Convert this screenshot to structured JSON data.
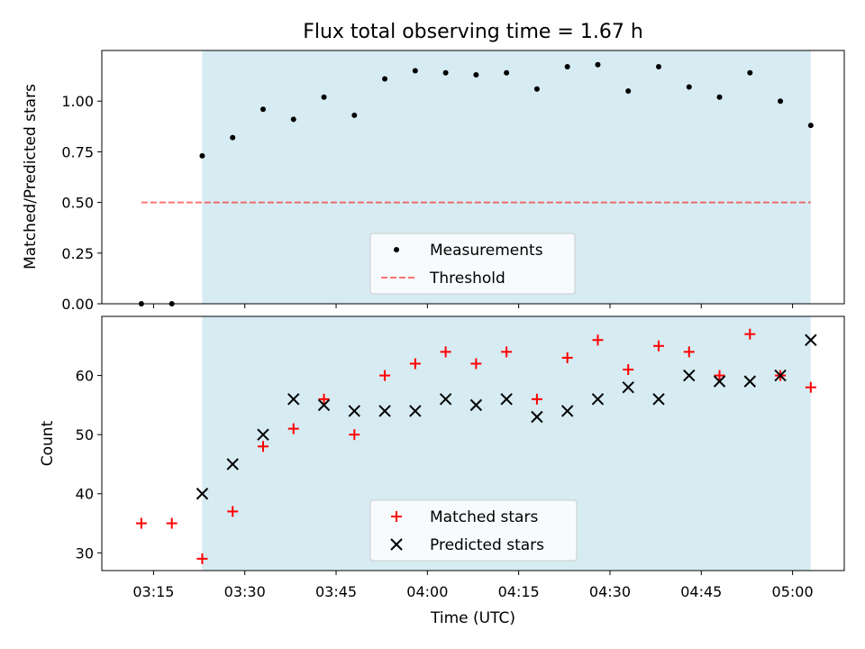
{
  "title": "Flux total observing time = 1.67 h",
  "colors": {
    "shade": "#add8e6",
    "measurement": "#000000",
    "threshold": "#ff0000",
    "matched": "#ff0000",
    "predicted": "#000000"
  },
  "chart_data": [
    {
      "type": "scatter",
      "panel": "top",
      "ylabel": "Matched/Predicted stars",
      "xlabel": "",
      "xlim_minutes": [
        186.5,
        308.5
      ],
      "ylim": [
        0,
        1.25
      ],
      "yticks": [
        0.0,
        0.25,
        0.5,
        0.75,
        1.0
      ],
      "ytick_labels": [
        "0.00",
        "0.25",
        "0.50",
        "0.75",
        "1.00"
      ],
      "xticks": [
        "03:15",
        "03:30",
        "03:45",
        "04:00",
        "04:15",
        "04:30",
        "04:45",
        "05:00"
      ],
      "shaded_region": [
        "03:23",
        "05:03"
      ],
      "legend": {
        "placement": "lower-center",
        "entries": [
          "Measurements",
          "Threshold"
        ]
      },
      "series": [
        {
          "name": "Measurements",
          "marker": "dot",
          "x": [
            "03:13",
            "03:18",
            "03:23",
            "03:28",
            "03:33",
            "03:38",
            "03:43",
            "03:48",
            "03:53",
            "03:58",
            "04:03",
            "04:08",
            "04:13",
            "04:18",
            "04:23",
            "04:28",
            "04:33",
            "04:38",
            "04:43",
            "04:48",
            "04:53",
            "04:58",
            "05:03"
          ],
          "y": [
            0.0,
            0.0,
            0.73,
            0.82,
            0.96,
            0.91,
            1.02,
            0.93,
            1.11,
            1.15,
            1.14,
            1.13,
            1.14,
            1.06,
            1.17,
            1.18,
            1.05,
            1.17,
            1.07,
            1.02,
            1.14,
            1.0,
            0.88
          ]
        },
        {
          "name": "Threshold",
          "style": "dashed",
          "x": [
            "03:13",
            "05:03"
          ],
          "y": [
            0.5,
            0.5
          ]
        }
      ]
    },
    {
      "type": "scatter",
      "panel": "bottom",
      "ylabel": "Count",
      "xlabel": "Time (UTC)",
      "xlim_minutes": [
        186.5,
        308.5
      ],
      "ylim": [
        27,
        70
      ],
      "yticks": [
        30,
        40,
        50,
        60
      ],
      "xticks": [
        "03:15",
        "03:30",
        "03:45",
        "04:00",
        "04:15",
        "04:30",
        "04:45",
        "05:00"
      ],
      "shaded_region": [
        "03:23",
        "05:03"
      ],
      "legend": {
        "placement": "lower-center",
        "entries": [
          "Matched stars",
          "Predicted stars"
        ]
      },
      "series": [
        {
          "name": "Matched stars",
          "marker": "plus",
          "x": [
            "03:13",
            "03:18",
            "03:23",
            "03:28",
            "03:33",
            "03:38",
            "03:43",
            "03:48",
            "03:53",
            "03:58",
            "04:03",
            "04:08",
            "04:13",
            "04:18",
            "04:23",
            "04:28",
            "04:33",
            "04:38",
            "04:43",
            "04:48",
            "04:53",
            "04:58",
            "05:03"
          ],
          "y": [
            35,
            35,
            29,
            37,
            48,
            51,
            56,
            50,
            60,
            62,
            64,
            62,
            64,
            56,
            63,
            66,
            61,
            65,
            64,
            60,
            67,
            60,
            58
          ]
        },
        {
          "name": "Predicted stars",
          "marker": "x",
          "x": [
            "03:23",
            "03:28",
            "03:33",
            "03:38",
            "03:43",
            "03:48",
            "03:53",
            "03:58",
            "04:03",
            "04:08",
            "04:13",
            "04:18",
            "04:23",
            "04:28",
            "04:33",
            "04:38",
            "04:43",
            "04:48",
            "04:53",
            "04:58",
            "05:03"
          ],
          "y": [
            40,
            45,
            50,
            56,
            55,
            54,
            54,
            54,
            56,
            55,
            56,
            53,
            54,
            56,
            58,
            56,
            60,
            59,
            59,
            60,
            66
          ]
        }
      ]
    }
  ]
}
